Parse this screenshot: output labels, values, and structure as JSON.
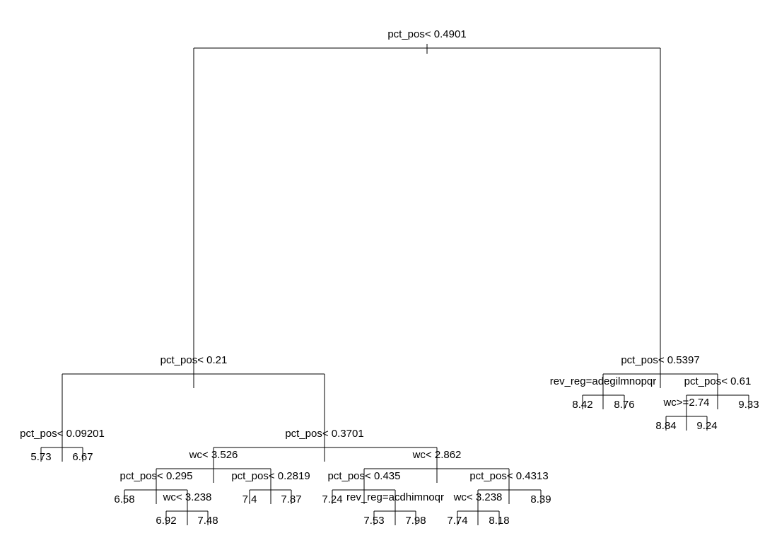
{
  "tree": {
    "root": {
      "split": "pct_pos< 0.4901",
      "left": {
        "split": "pct_pos< 0.21",
        "left": {
          "split": "pct_pos< 0.09201",
          "left": {
            "leaf": "5.73"
          },
          "right": {
            "leaf": "6.67"
          }
        },
        "right": {
          "split": "pct_pos< 0.3701",
          "left": {
            "split": "wc< 3.526",
            "left": {
              "split": "pct_pos< 0.295",
              "left": {
                "leaf": "6.58"
              },
              "right": {
                "split": "wc< 3.238",
                "left": {
                  "leaf": "6.92"
                },
                "right": {
                  "leaf": "7.48"
                }
              }
            },
            "right": {
              "split": "pct_pos< 0.2819",
              "left": {
                "leaf": "7.4"
              },
              "right": {
                "leaf": "7.87"
              }
            }
          },
          "right": {
            "split": "wc< 2.862",
            "left": {
              "split": "pct_pos< 0.435",
              "left": {
                "leaf": "7.24"
              },
              "right": {
                "split": "rev_reg=acdhimnoqr",
                "left": {
                  "leaf": "7.53"
                },
                "right": {
                  "leaf": "7.98"
                }
              }
            },
            "right": {
              "split": "pct_pos< 0.4313",
              "left": {
                "split": "wc< 3.238",
                "left": {
                  "leaf": "7.74"
                },
                "right": {
                  "leaf": "8.18"
                }
              },
              "right": {
                "leaf": "8.39"
              }
            }
          }
        }
      },
      "right": {
        "split": "pct_pos< 0.5397",
        "left": {
          "split": "rev_reg=adegilmnopqr",
          "left": {
            "leaf": "8.42"
          },
          "right": {
            "leaf": "8.76"
          }
        },
        "right": {
          "split": "pct_pos< 0.61",
          "left": {
            "split": "wc>=2.74",
            "left": {
              "leaf": "8.84"
            },
            "right": {
              "leaf": "9.24"
            }
          },
          "right": {
            "leaf": "9.33"
          }
        }
      }
    }
  }
}
